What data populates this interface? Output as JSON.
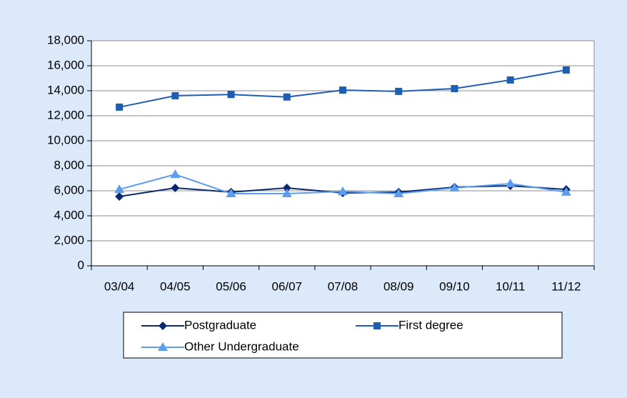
{
  "chart_data": {
    "type": "line",
    "categories": [
      "03/04",
      "04/05",
      "05/06",
      "06/07",
      "07/08",
      "08/09",
      "09/10",
      "10/11",
      "11/12"
    ],
    "series": [
      {
        "name": "Postgraduate",
        "color": "#0b2a6e",
        "marker": "diamond",
        "values": [
          5540,
          6230,
          5890,
          6230,
          5830,
          5890,
          6290,
          6400,
          6110
        ]
      },
      {
        "name": "First degree",
        "color": "#1d5db4",
        "marker": "square",
        "values": [
          12690,
          13600,
          13700,
          13500,
          14050,
          13950,
          14170,
          14860,
          15660
        ]
      },
      {
        "name": "Other Undergraduate",
        "color": "#5b9cec",
        "marker": "triangle",
        "values": [
          6110,
          7310,
          5770,
          5770,
          5940,
          5770,
          6230,
          6570,
          5890
        ]
      }
    ],
    "ylim": [
      0,
      18000
    ],
    "yticks": [
      0,
      {
        "value": 2000,
        "label": "2,000"
      },
      {
        "value": 4000,
        "label": "4,000"
      },
      {
        "value": 6000,
        "label": "6,000"
      },
      {
        "value": 8000,
        "label": "8,000"
      },
      {
        "value": 10000,
        "label": "10,000"
      },
      {
        "value": 12000,
        "label": "12,000"
      },
      {
        "value": 14000,
        "label": "14,000"
      },
      {
        "value": 16000,
        "label": "16,000"
      },
      {
        "value": 18000,
        "label": "18,000"
      }
    ],
    "grid": true,
    "legend": "bottom"
  }
}
